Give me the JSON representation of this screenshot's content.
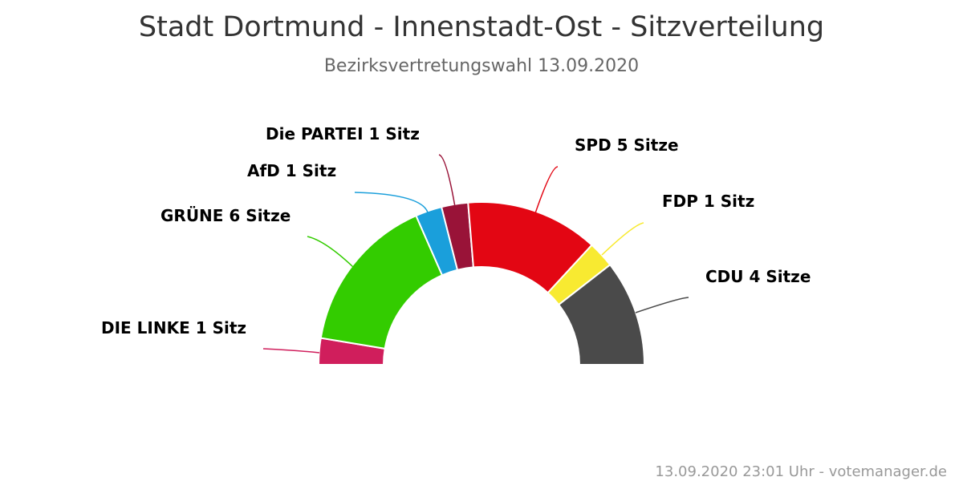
{
  "chart_data": {
    "type": "pie",
    "variant": "semicircle-donut",
    "title": "Stadt Dortmund - Innenstadt-Ost - Sitzverteilung",
    "subtitle": "Bezirksvertretungswahl 13.09.2020",
    "credits": "13.09.2020 23:01 Uhr - votemanager.de",
    "series": [
      {
        "name": "DIE LINKE",
        "value": 1,
        "label": "DIE LINKE 1 Sitz",
        "color": "#d01e5c"
      },
      {
        "name": "GRÜNE",
        "value": 6,
        "label": "GRÜNE 6 Sitze",
        "color": "#33cc00"
      },
      {
        "name": "AfD",
        "value": 1,
        "label": "AfD 1 Sitz",
        "color": "#1a9fdb"
      },
      {
        "name": "Die PARTEI",
        "value": 1,
        "label": "Die PARTEI 1 Sitz",
        "color": "#991338"
      },
      {
        "name": "SPD",
        "value": 5,
        "label": "SPD 5 Sitze",
        "color": "#e30613"
      },
      {
        "name": "FDP",
        "value": 1,
        "label": "FDP 1 Sitz",
        "color": "#f8ea31"
      },
      {
        "name": "CDU",
        "value": 4,
        "label": "CDU 4 Sitze",
        "color": "#4a4a4a"
      }
    ]
  }
}
